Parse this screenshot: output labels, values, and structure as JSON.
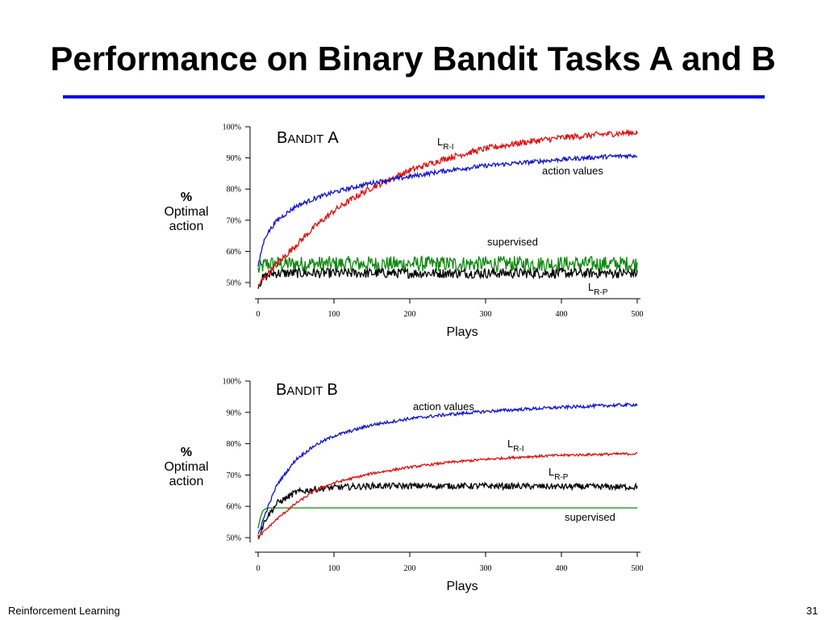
{
  "slide": {
    "title": "Performance on Binary Bandit Tasks A and B",
    "footer_left": "Reinforcement Learning",
    "page_number": "31",
    "rule_color": "#0000ee"
  },
  "chart_data": [
    {
      "type": "line",
      "title_big1": "B",
      "title_small": "ANDIT",
      "title_big2": "A",
      "xlabel": "Plays",
      "ylabel_lines": [
        "%",
        "Optimal",
        "action"
      ],
      "xlim": [
        0,
        500
      ],
      "ylim": [
        48,
        100
      ],
      "x_ticks": [
        0,
        100,
        200,
        300,
        400,
        500
      ],
      "y_ticks": [
        50,
        60,
        70,
        80,
        90,
        100
      ],
      "y_tick_labels": [
        "50%",
        "60%",
        "70%",
        "80%",
        "90%",
        "100%"
      ],
      "grid": false,
      "series": [
        {
          "key": "supervised",
          "label_text": "supervised",
          "color": "#118811",
          "x": [
            0,
            5,
            10,
            20,
            50,
            100,
            200,
            300,
            400,
            500
          ],
          "y": [
            54,
            55,
            56,
            56,
            56,
            56,
            56,
            56,
            56,
            56
          ],
          "noise": 2.5
        },
        {
          "key": "lrp",
          "label_text": "L",
          "label_sub": "R-P",
          "color": "#000000",
          "x": [
            0,
            5,
            10,
            20,
            50,
            100,
            200,
            300,
            400,
            500
          ],
          "y": [
            49,
            51,
            52,
            53,
            53,
            53,
            53,
            53,
            53,
            53
          ],
          "noise": 1.6
        },
        {
          "key": "lri",
          "label_text": "L",
          "label_sub": "R-I",
          "color": "#dd1111",
          "x": [
            0,
            10,
            25,
            50,
            75,
            100,
            125,
            150,
            200,
            250,
            300,
            350,
            400,
            450,
            500
          ],
          "y": [
            49,
            52,
            56,
            62,
            68,
            73,
            77,
            80.5,
            86,
            90,
            93,
            95,
            96.5,
            97.5,
            98.2
          ],
          "noise": 1.0
        },
        {
          "key": "av",
          "label_text": "action values",
          "color": "#1111cc",
          "x": [
            0,
            5,
            10,
            25,
            50,
            75,
            100,
            150,
            200,
            250,
            300,
            350,
            400,
            450,
            500
          ],
          "y": [
            55,
            61,
            65,
            70,
            74.5,
            77,
            79,
            82,
            84,
            86,
            87.5,
            88.5,
            89.5,
            90.3,
            90.8
          ],
          "noise": 0.7
        }
      ]
    },
    {
      "type": "line",
      "title_big1": "B",
      "title_small": "ANDIT",
      "title_big2": "B",
      "xlabel": "Plays",
      "ylabel_lines": [
        "%",
        "Optimal",
        "action"
      ],
      "xlim": [
        0,
        500
      ],
      "ylim": [
        48,
        100
      ],
      "x_ticks": [
        0,
        100,
        200,
        300,
        400,
        500
      ],
      "y_ticks": [
        50,
        60,
        70,
        80,
        90,
        100
      ],
      "y_tick_labels": [
        "50%",
        "60%",
        "70%",
        "80%",
        "90%",
        "100%"
      ],
      "grid": false,
      "series": [
        {
          "key": "supervised",
          "label_text": "supervised",
          "color": "#118811",
          "x": [
            0,
            3,
            6,
            10,
            15,
            100,
            200,
            300,
            400,
            500
          ],
          "y": [
            53,
            56.5,
            58.5,
            59.3,
            59.5,
            59.5,
            59.5,
            59.5,
            59.5,
            59.5
          ],
          "noise": 0
        },
        {
          "key": "lrp",
          "label_text": "L",
          "label_sub": "R-P",
          "color": "#000000",
          "x": [
            0,
            10,
            25,
            50,
            75,
            100,
            150,
            200,
            300,
            400,
            500
          ],
          "y": [
            50,
            56,
            61,
            64.5,
            65.5,
            66,
            66.5,
            66.5,
            66.5,
            66.3,
            66.2
          ],
          "noise": 1.0
        },
        {
          "key": "lri",
          "label_text": "L",
          "label_sub": "R-I",
          "color": "#dd1111",
          "x": [
            0,
            10,
            25,
            50,
            75,
            100,
            150,
            200,
            250,
            300,
            350,
            400,
            450,
            500
          ],
          "y": [
            50,
            52.5,
            56,
            61,
            65,
            67.5,
            70.5,
            72.5,
            74,
            75,
            75.8,
            76.3,
            76.6,
            76.8
          ],
          "noise": 0.4
        },
        {
          "key": "av",
          "label_text": "action values",
          "color": "#1111cc",
          "x": [
            0,
            10,
            25,
            50,
            75,
            100,
            150,
            200,
            250,
            300,
            350,
            400,
            450,
            500
          ],
          "y": [
            51,
            58,
            67,
            75,
            79.5,
            82.5,
            86,
            88,
            89.3,
            90.3,
            91,
            91.6,
            92.1,
            92.5
          ],
          "noise": 0.5
        }
      ]
    }
  ]
}
